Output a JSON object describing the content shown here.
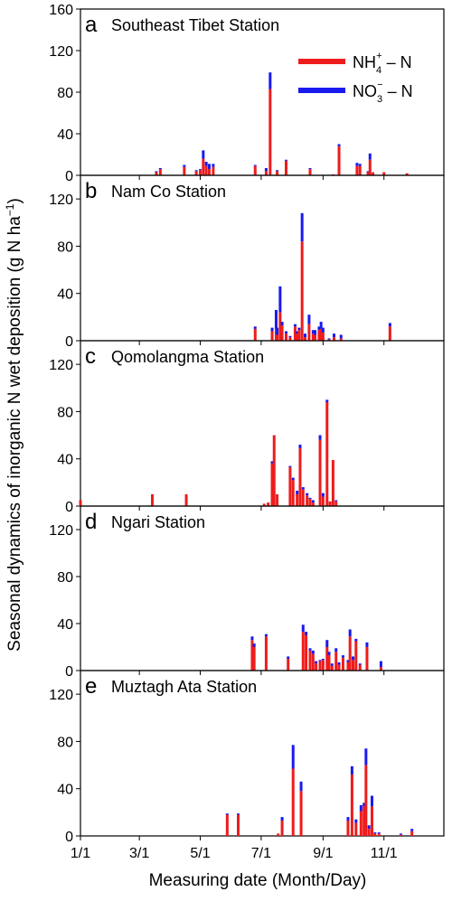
{
  "ylabel": "Seasonal dynamics of inorganic N wet deposition (g N ha",
  "ylabel_sup": "−1",
  "ylabel_close": ")",
  "xlabel": "Measuring date (Month/Day)",
  "legend": {
    "nh4": {
      "base": "NH",
      "sub": "4",
      "sup": "+",
      "tail": " – N",
      "color": "#ee1c1c"
    },
    "no3": {
      "base": "NO",
      "sub": "3",
      "sup": "−",
      "tail": " – N",
      "color": "#1a1aee"
    }
  },
  "colors": {
    "nh4": "#ee1c1c",
    "no3": "#1a1aee"
  },
  "chart_data": {
    "type": "bar",
    "stacked": true,
    "x_axis": {
      "min_day": 1,
      "max_day": 365,
      "ticks": [
        {
          "day": 1,
          "label": "1/1"
        },
        {
          "day": 60,
          "label": "3/1"
        },
        {
          "day": 121,
          "label": "5/1"
        },
        {
          "day": 182,
          "label": "7/1"
        },
        {
          "day": 244,
          "label": "9/1"
        },
        {
          "day": 305,
          "label": "11/1"
        }
      ]
    },
    "panels": [
      {
        "letter": "a",
        "title": "Southeast Tibet Station",
        "ylim": [
          0,
          160
        ],
        "yticks": [
          0,
          40,
          80,
          120,
          160
        ],
        "bars": [
          [
            77,
            3,
            1
          ],
          [
            81,
            6,
            1
          ],
          [
            105,
            8,
            2
          ],
          [
            117,
            4,
            1
          ],
          [
            121,
            5,
            1
          ],
          [
            124,
            16,
            8
          ],
          [
            127,
            9,
            4
          ],
          [
            130,
            6,
            5
          ],
          [
            134,
            8,
            3
          ],
          [
            176,
            9,
            1
          ],
          [
            187,
            4,
            3
          ],
          [
            191,
            83,
            16
          ],
          [
            198,
            4,
            1
          ],
          [
            207,
            14,
            1
          ],
          [
            231,
            6,
            1
          ],
          [
            254,
            1,
            0
          ],
          [
            260,
            28,
            2
          ],
          [
            278,
            9,
            3
          ],
          [
            281,
            9,
            2
          ],
          [
            289,
            3,
            1
          ],
          [
            291,
            15,
            6
          ],
          [
            294,
            3,
            0
          ],
          [
            305,
            3,
            0
          ],
          [
            328,
            2,
            0
          ]
        ]
      },
      {
        "letter": "b",
        "title": "Nam Co Station",
        "ylim": [
          0,
          140
        ],
        "yticks": [
          0,
          40,
          80,
          120
        ],
        "bars": [
          [
            176,
            10,
            2
          ],
          [
            193,
            8,
            3
          ],
          [
            197,
            10,
            16
          ],
          [
            198,
            5,
            6
          ],
          [
            201,
            24,
            22
          ],
          [
            203,
            13,
            3
          ],
          [
            207,
            6,
            2
          ],
          [
            211,
            3,
            1
          ],
          [
            216,
            12,
            2
          ],
          [
            218,
            6,
            2
          ],
          [
            220,
            9,
            2
          ],
          [
            223,
            84,
            24
          ],
          [
            226,
            3,
            3
          ],
          [
            230,
            14,
            8
          ],
          [
            234,
            6,
            3
          ],
          [
            236,
            5,
            4
          ],
          [
            240,
            9,
            3
          ],
          [
            242,
            10,
            6
          ],
          [
            244,
            7,
            4
          ],
          [
            250,
            1,
            1
          ],
          [
            255,
            3,
            3
          ],
          [
            262,
            2,
            3
          ],
          [
            311,
            12,
            3
          ]
        ]
      },
      {
        "letter": "c",
        "title": "Qomolangma Station",
        "ylim": [
          0,
          140
        ],
        "yticks": [
          0,
          40,
          80,
          120
        ],
        "bars": [
          [
            1,
            5,
            0
          ],
          [
            73,
            10,
            0
          ],
          [
            107,
            10,
            0
          ],
          [
            185,
            2,
            0
          ],
          [
            189,
            3,
            0
          ],
          [
            193,
            36,
            2
          ],
          [
            195,
            60,
            0
          ],
          [
            198,
            10,
            0
          ],
          [
            211,
            33,
            1
          ],
          [
            214,
            22,
            2
          ],
          [
            218,
            10,
            3
          ],
          [
            221,
            49,
            3
          ],
          [
            224,
            14,
            2
          ],
          [
            228,
            9,
            2
          ],
          [
            231,
            6,
            1
          ],
          [
            234,
            3,
            2
          ],
          [
            241,
            56,
            4
          ],
          [
            244,
            8,
            3
          ],
          [
            248,
            88,
            2
          ],
          [
            251,
            4,
            0
          ],
          [
            254,
            39,
            0
          ],
          [
            257,
            4,
            1
          ]
        ]
      },
      {
        "letter": "d",
        "title": "Ngari Station",
        "ylim": [
          0,
          140
        ],
        "yticks": [
          0,
          40,
          80,
          120
        ],
        "bars": [
          [
            173,
            26,
            3
          ],
          [
            175,
            20,
            3
          ],
          [
            187,
            29,
            2
          ],
          [
            209,
            10,
            2
          ],
          [
            224,
            33,
            6
          ],
          [
            227,
            30,
            3
          ],
          [
            231,
            17,
            2
          ],
          [
            234,
            14,
            3
          ],
          [
            237,
            6,
            2
          ],
          [
            241,
            8,
            1
          ],
          [
            244,
            9,
            1
          ],
          [
            248,
            20,
            6
          ],
          [
            250,
            13,
            3
          ],
          [
            253,
            4,
            2
          ],
          [
            257,
            16,
            3
          ],
          [
            260,
            5,
            2
          ],
          [
            264,
            11,
            2
          ],
          [
            269,
            7,
            2
          ],
          [
            271,
            29,
            6
          ],
          [
            274,
            9,
            3
          ],
          [
            277,
            25,
            2
          ],
          [
            281,
            5,
            1
          ],
          [
            288,
            20,
            4
          ],
          [
            302,
            3,
            5
          ]
        ]
      },
      {
        "letter": "e",
        "title": "Muztagh Ata Station",
        "ylim": [
          0,
          140
        ],
        "yticks": [
          0,
          40,
          80,
          120
        ],
        "bars": [
          [
            148,
            18,
            1
          ],
          [
            159,
            18,
            1
          ],
          [
            199,
            2,
            0
          ],
          [
            203,
            13,
            3
          ],
          [
            214,
            57,
            20
          ],
          [
            222,
            38,
            8
          ],
          [
            269,
            13,
            3
          ],
          [
            273,
            52,
            7
          ],
          [
            277,
            11,
            3
          ],
          [
            282,
            21,
            5
          ],
          [
            285,
            25,
            3
          ],
          [
            287,
            60,
            14
          ],
          [
            290,
            6,
            3
          ],
          [
            293,
            25,
            9
          ],
          [
            296,
            2,
            1
          ],
          [
            300,
            2,
            1
          ],
          [
            322,
            1,
            1
          ],
          [
            333,
            4,
            2
          ]
        ]
      }
    ]
  }
}
